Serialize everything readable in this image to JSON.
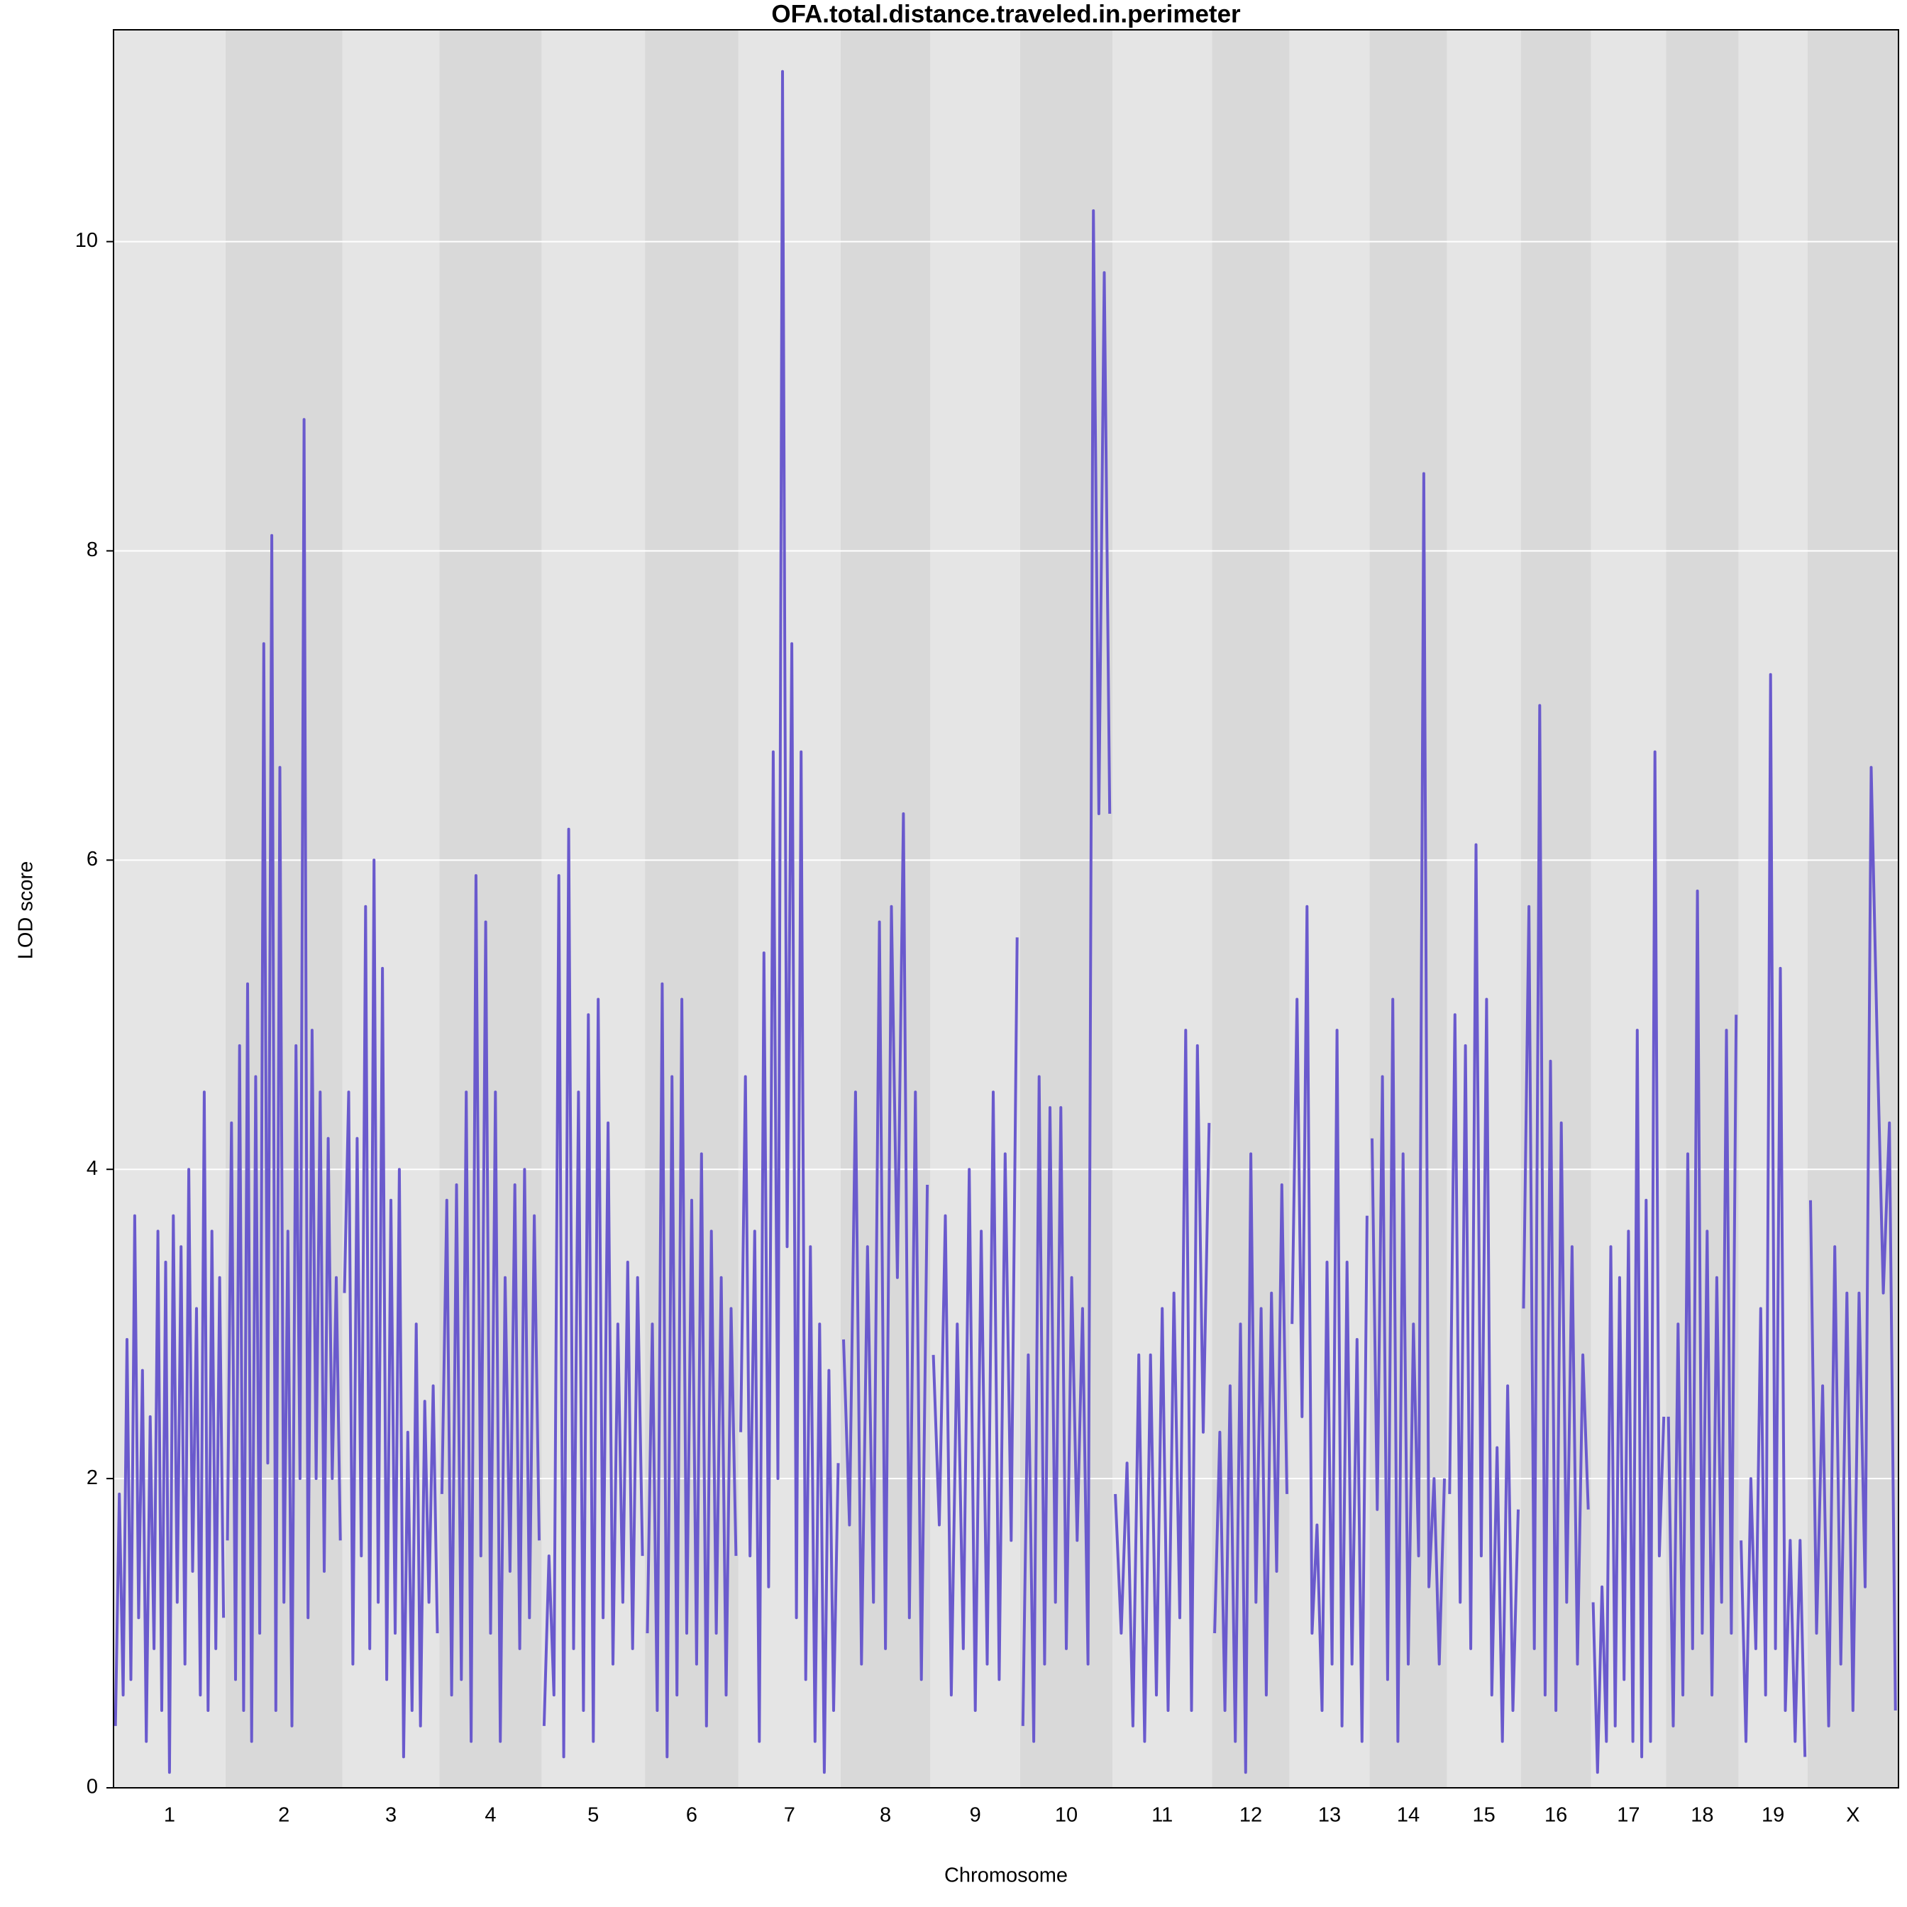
{
  "chart_data": {
    "type": "line",
    "title": "OFA.total.distance.traveled.in.perimeter",
    "xlabel": "Chromosome",
    "ylabel": "LOD score",
    "ylim": [
      0,
      11.37
    ],
    "yticks": [
      0,
      2,
      4,
      6,
      8,
      10
    ],
    "grid": true,
    "color": "#6a5acd",
    "band_colors": [
      "#e5e5e5",
      "#d9d9d9"
    ],
    "chromosomes": [
      {
        "name": "1",
        "length": 91,
        "values": [
          0.4,
          1.9,
          0.6,
          2.9,
          0.7,
          3.7,
          1.1,
          2.7,
          0.3,
          2.4,
          0.9,
          3.6,
          0.5,
          3.4,
          0.1,
          3.7,
          1.2,
          3.5,
          0.8,
          4.0,
          1.4,
          3.1,
          0.6,
          4.5,
          0.5,
          3.6,
          0.9,
          3.3,
          1.1
        ]
      },
      {
        "name": "2",
        "length": 95,
        "values": [
          1.6,
          4.3,
          0.7,
          4.8,
          0.5,
          5.2,
          0.3,
          4.6,
          1.0,
          7.4,
          2.1,
          8.1,
          0.5,
          6.6,
          1.2,
          3.6,
          0.4,
          4.8,
          2.0,
          8.85,
          1.1,
          4.9,
          2.0,
          4.5,
          1.4,
          4.2,
          2.0,
          3.3,
          1.6
        ]
      },
      {
        "name": "3",
        "length": 79,
        "values": [
          3.2,
          4.5,
          0.8,
          4.2,
          1.5,
          5.7,
          0.9,
          6.0,
          1.2,
          5.3,
          0.7,
          3.8,
          1.0,
          4.0,
          0.2,
          2.3,
          0.5,
          3.0,
          0.4,
          2.5,
          1.2,
          2.6,
          1.0
        ]
      },
      {
        "name": "4",
        "length": 83,
        "values": [
          1.9,
          3.8,
          0.6,
          3.9,
          0.7,
          4.5,
          0.3,
          5.9,
          1.5,
          5.6,
          1.0,
          4.5,
          0.3,
          3.3,
          1.4,
          3.9,
          0.9,
          4.0,
          1.1,
          3.7,
          1.6
        ]
      },
      {
        "name": "5",
        "length": 84,
        "values": [
          0.4,
          1.5,
          0.6,
          5.9,
          0.2,
          6.2,
          0.9,
          4.5,
          0.5,
          5.0,
          0.3,
          5.1,
          1.1,
          4.3,
          0.8,
          3.0,
          1.2,
          3.4,
          0.9,
          3.3,
          1.5
        ]
      },
      {
        "name": "6",
        "length": 76,
        "values": [
          1.0,
          3.0,
          0.5,
          5.2,
          0.2,
          4.6,
          0.6,
          5.1,
          1.0,
          3.8,
          0.8,
          4.1,
          0.4,
          3.6,
          1.0,
          3.3,
          0.6,
          3.1,
          1.5
        ]
      },
      {
        "name": "7",
        "length": 83,
        "values": [
          2.3,
          4.6,
          1.5,
          3.6,
          0.3,
          5.4,
          1.3,
          6.7,
          2.0,
          11.1,
          3.5,
          7.4,
          1.1,
          6.7,
          0.7,
          3.5,
          0.3,
          3.0,
          0.1,
          2.7,
          0.5,
          2.1
        ]
      },
      {
        "name": "8",
        "length": 73,
        "values": [
          2.9,
          1.7,
          4.5,
          0.8,
          3.5,
          1.2,
          5.6,
          0.9,
          5.7,
          3.3,
          6.3,
          1.1,
          4.5,
          0.7,
          3.9
        ]
      },
      {
        "name": "9",
        "length": 73,
        "values": [
          2.8,
          1.7,
          3.7,
          0.6,
          3.0,
          0.9,
          4.0,
          0.5,
          3.6,
          0.8,
          4.5,
          0.7,
          4.1,
          1.6,
          5.5
        ]
      },
      {
        "name": "10",
        "length": 75,
        "values": [
          0.4,
          2.8,
          0.3,
          4.6,
          0.8,
          4.4,
          1.2,
          4.4,
          0.9,
          3.3,
          1.6,
          3.1,
          0.8,
          10.2,
          6.3,
          9.8,
          6.3
        ]
      },
      {
        "name": "11",
        "length": 81,
        "values": [
          1.9,
          1.0,
          2.1,
          0.4,
          2.8,
          0.3,
          2.8,
          0.6,
          3.1,
          0.5,
          3.2,
          1.1,
          4.9,
          0.5,
          4.8,
          2.3,
          4.3
        ]
      },
      {
        "name": "12",
        "length": 63,
        "values": [
          1.0,
          2.3,
          0.5,
          2.6,
          0.3,
          3.0,
          0.1,
          4.1,
          1.2,
          3.1,
          0.6,
          3.2,
          1.4,
          3.9,
          1.9
        ]
      },
      {
        "name": "13",
        "length": 65,
        "values": [
          3.0,
          5.1,
          2.4,
          5.7,
          1.0,
          1.7,
          0.5,
          3.4,
          0.8,
          4.9,
          0.4,
          3.4,
          0.8,
          2.9,
          0.3,
          3.7
        ]
      },
      {
        "name": "14",
        "length": 63,
        "values": [
          4.2,
          1.8,
          4.6,
          0.7,
          5.1,
          0.3,
          4.1,
          0.8,
          3.0,
          1.5,
          8.5,
          1.3,
          2.0,
          0.8,
          2.0
        ]
      },
      {
        "name": "15",
        "length": 60,
        "values": [
          1.9,
          5.0,
          1.2,
          4.8,
          0.9,
          6.1,
          1.5,
          5.1,
          0.6,
          2.2,
          0.3,
          2.6,
          0.5,
          1.8
        ]
      },
      {
        "name": "16",
        "length": 57,
        "values": [
          3.1,
          5.7,
          0.9,
          7.0,
          0.6,
          4.7,
          0.5,
          4.3,
          1.2,
          3.5,
          0.8,
          2.8,
          1.8
        ]
      },
      {
        "name": "17",
        "length": 61,
        "values": [
          1.2,
          0.1,
          1.3,
          0.3,
          3.5,
          0.4,
          3.3,
          0.7,
          3.6,
          0.3,
          4.9,
          0.2,
          3.8,
          0.3,
          6.7,
          1.5,
          2.4
        ]
      },
      {
        "name": "18",
        "length": 59,
        "values": [
          2.4,
          0.4,
          3.0,
          0.6,
          4.1,
          0.9,
          5.8,
          1.0,
          3.6,
          0.6,
          3.3,
          1.2,
          4.9,
          1.0,
          5.0
        ]
      },
      {
        "name": "19",
        "length": 56,
        "values": [
          1.6,
          0.3,
          2.0,
          0.9,
          3.1,
          0.6,
          7.2,
          0.9,
          5.3,
          0.5,
          1.6,
          0.3,
          1.6,
          0.2
        ]
      },
      {
        "name": "X",
        "length": 74,
        "values": [
          3.8,
          1.0,
          2.6,
          0.4,
          3.5,
          0.8,
          3.2,
          0.5,
          3.2,
          1.3,
          6.6,
          4.8,
          3.2,
          4.3,
          0.5
        ]
      }
    ]
  }
}
